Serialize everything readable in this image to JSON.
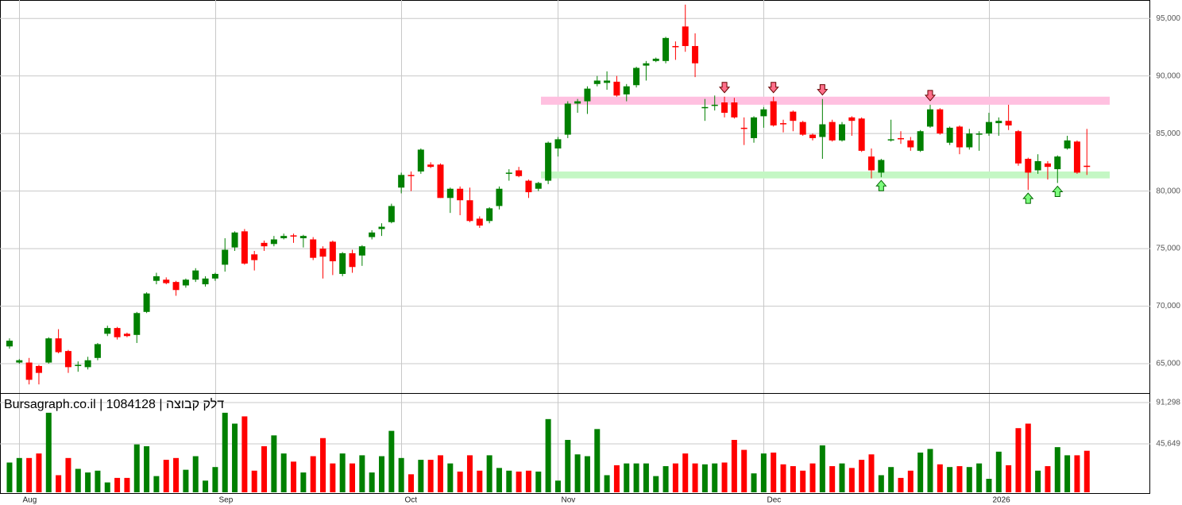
{
  "chart_data": {
    "type": "candlestick",
    "title": "Bursagraph.co.il | 1084128 | דלק קבוצה",
    "categories": [
      null,
      "Aug",
      null,
      null,
      null,
      null,
      null,
      null,
      null,
      null,
      null,
      null,
      null,
      null,
      null,
      null,
      null,
      null,
      null,
      null,
      null,
      "Sep",
      null,
      null,
      null,
      null,
      null,
      null,
      null,
      null,
      null,
      null,
      null,
      null,
      null,
      null,
      null,
      null,
      null,
      null,
      "Oct",
      null,
      null,
      null,
      null,
      null,
      null,
      null,
      null,
      null,
      null,
      null,
      null,
      null,
      null,
      null,
      "Nov",
      null,
      null,
      null,
      null,
      null,
      null,
      null,
      null,
      null,
      null,
      null,
      null,
      null,
      null,
      null,
      null,
      null,
      null,
      null,
      null,
      "Dec",
      null,
      null,
      null,
      null,
      null,
      null,
      null,
      null,
      null,
      null,
      null,
      null,
      null,
      null,
      null,
      null,
      null,
      null,
      null,
      null,
      null,
      null,
      "2026",
      null,
      null,
      null,
      null,
      null,
      null,
      null,
      null,
      null,
      null
    ],
    "open": [
      66500,
      65100,
      65100,
      64800,
      65100,
      67200,
      66100,
      64800,
      64700,
      65500,
      67600,
      68100,
      67600,
      67500,
      69500,
      72200,
      72300,
      72100,
      71800,
      72300,
      71900,
      72400,
      73600,
      75100,
      76500,
      74500,
      75500,
      75400,
      75900,
      76150,
      75900,
      75800,
      75000,
      75600,
      72800,
      74600,
      74400,
      76000,
      76700,
      77300,
      80300,
      81400,
      81700,
      82300,
      82300,
      79400,
      80200,
      79200,
      77600,
      77400,
      78700,
      81500,
      81800,
      80900,
      80200,
      80900,
      83700,
      84900,
      87600,
      87800,
      89300,
      89400,
      89500,
      88400,
      89200,
      90900,
      91300,
      91300,
      92600,
      94300,
      92600,
      87200,
      87400,
      87700,
      87700,
      85500,
      84600,
      86500,
      87800,
      85900,
      86900,
      86000,
      84900,
      84700,
      86000,
      84400,
      86400,
      86300,
      83000,
      81600,
      84400,
      84600,
      84400,
      83500,
      85600,
      87100,
      84200,
      85600,
      83800,
      84900,
      85000,
      85900,
      86100,
      85200,
      82800,
      81800,
      82400,
      81900,
      83700,
      84300,
      82200
    ],
    "high": [
      67200,
      65400,
      65500,
      64900,
      67300,
      68000,
      66200,
      65200,
      65600,
      66800,
      68300,
      68200,
      67700,
      69500,
      71200,
      72900,
      72500,
      72200,
      72400,
      73300,
      72600,
      72900,
      75900,
      76500,
      76700,
      74800,
      75700,
      76100,
      76300,
      76300,
      76200,
      76000,
      75200,
      75700,
      74700,
      74900,
      75300,
      76600,
      77200,
      78900,
      81600,
      81700,
      83700,
      82500,
      82400,
      80300,
      80400,
      80300,
      77800,
      78600,
      80400,
      81900,
      82100,
      81000,
      80800,
      84300,
      84700,
      87800,
      88000,
      89100,
      90000,
      90400,
      90000,
      89300,
      90800,
      91300,
      91600,
      93400,
      93000,
      96200,
      93700,
      88000,
      88300,
      88200,
      88100,
      86400,
      86500,
      87300,
      88200,
      86200,
      87000,
      86100,
      85000,
      88000,
      86200,
      86000,
      86500,
      86400,
      83700,
      82800,
      86200,
      85200,
      84700,
      85300,
      87500,
      87200,
      85600,
      85700,
      85400,
      85200,
      86800,
      86400,
      87500,
      85300,
      82900,
      83200,
      82600,
      83100,
      84800,
      84400,
      85400
    ],
    "low": [
      66300,
      65000,
      63200,
      63200,
      65000,
      65900,
      64200,
      64300,
      64500,
      65300,
      67400,
      67100,
      67300,
      66800,
      69400,
      71900,
      71900,
      70900,
      71600,
      72100,
      71700,
      72200,
      73000,
      74800,
      73600,
      73100,
      74800,
      75200,
      75800,
      75500,
      75100,
      74000,
      72400,
      72700,
      72600,
      72900,
      73500,
      75800,
      76100,
      77200,
      79800,
      80000,
      81500,
      82000,
      79400,
      78100,
      77900,
      77300,
      76800,
      77200,
      78400,
      80900,
      81200,
      79400,
      80000,
      80600,
      83000,
      84600,
      86800,
      86700,
      89100,
      88800,
      88200,
      87800,
      89000,
      89600,
      91200,
      91100,
      91400,
      92100,
      89900,
      86100,
      87000,
      86400,
      86300,
      84000,
      84200,
      85500,
      85600,
      85100,
      85200,
      84800,
      84400,
      82800,
      84300,
      84300,
      84800,
      83400,
      81100,
      81200,
      84300,
      84100,
      83500,
      83400,
      85500,
      84900,
      84000,
      83200,
      83600,
      83500,
      84800,
      84800,
      85300,
      82200,
      80100,
      81500,
      81000,
      80700,
      83600,
      81500,
      81400
    ],
    "close": [
      67000,
      65300,
      63600,
      64200,
      67200,
      66000,
      64700,
      64900,
      65300,
      66700,
      68100,
      67300,
      67400,
      69400,
      71100,
      72600,
      72000,
      71400,
      72300,
      73100,
      72400,
      72800,
      74900,
      76400,
      73700,
      74000,
      75200,
      75800,
      76100,
      76050,
      76100,
      74200,
      74300,
      73900,
      74600,
      73400,
      75200,
      76400,
      76900,
      78700,
      81400,
      81300,
      83600,
      82100,
      79400,
      80200,
      79200,
      77400,
      77000,
      78500,
      80200,
      81600,
      81300,
      79900,
      80700,
      84200,
      84500,
      87600,
      87800,
      88900,
      89600,
      89600,
      88300,
      89100,
      90700,
      91100,
      91500,
      93300,
      92500,
      92600,
      91100,
      87300,
      87500,
      86800,
      86400,
      85400,
      86400,
      87100,
      85700,
      85800,
      86100,
      84900,
      84600,
      85800,
      84400,
      85800,
      86100,
      83500,
      81800,
      82700,
      84500,
      84500,
      83800,
      85200,
      87100,
      85000,
      85500,
      83800,
      85000,
      85000,
      86000,
      86100,
      85700,
      82400,
      81600,
      82600,
      82100,
      83000,
      84400,
      81600,
      82100
    ],
    "volume": [
      25000,
      30000,
      30000,
      35000,
      80000,
      11000,
      30000,
      18000,
      14000,
      16000,
      3000,
      8000,
      8000,
      45000,
      43000,
      10000,
      28000,
      30000,
      17000,
      32000,
      5000,
      20000,
      80000,
      68000,
      76000,
      16000,
      43000,
      55000,
      35000,
      26000,
      14000,
      32000,
      52000,
      24000,
      35000,
      24000,
      33000,
      14000,
      32000,
      60000,
      30000,
      12000,
      28000,
      28000,
      33000,
      24000,
      15000,
      33000,
      16000,
      33000,
      19000,
      16000,
      15000,
      16000,
      15000,
      73000,
      5000,
      50000,
      34000,
      32000,
      62000,
      11000,
      22000,
      24000,
      24000,
      24000,
      10000,
      21000,
      24000,
      35000,
      24000,
      23000,
      24000,
      25000,
      50000,
      39000,
      13000,
      35000,
      36000,
      23000,
      21000,
      16000,
      24000,
      44000,
      21000,
      24000,
      19000,
      28000,
      34000,
      11000,
      20000,
      8000,
      16000,
      36000,
      40000,
      23000,
      20000,
      21000,
      20000,
      24000,
      7000,
      37000,
      22000,
      63000,
      68000,
      16000,
      21000,
      42000,
      33000,
      33000,
      38000
    ],
    "up_color": "#008000",
    "down_color": "#ff0000",
    "ylim": [
      62450,
      96600
    ],
    "yticks": [
      {
        "value": 65000,
        "label": "65,000"
      },
      {
        "value": 70000,
        "label": "70,000"
      },
      {
        "value": 75000,
        "label": "75,000"
      },
      {
        "value": 80000,
        "label": "80,000"
      },
      {
        "value": 85000,
        "label": "85,000"
      },
      {
        "value": 90000,
        "label": "90,000"
      },
      {
        "value": 95000,
        "label": "95,000"
      }
    ],
    "volume_ylim": [
      -7900,
      101800
    ],
    "volume_yticks": [
      {
        "value": 45649,
        "label": "45,649"
      },
      {
        "value": 91298,
        "label": "91,298"
      }
    ],
    "resistance_band": [
      87500,
      88200
    ],
    "resistance_color": "#ffc0e0",
    "support_band": [
      81100,
      81700
    ],
    "support_color": "#c4f7c4",
    "sell_arrows": [
      73,
      78,
      83,
      94
    ],
    "buy_arrows": [
      89,
      104,
      107
    ],
    "grid": true
  }
}
